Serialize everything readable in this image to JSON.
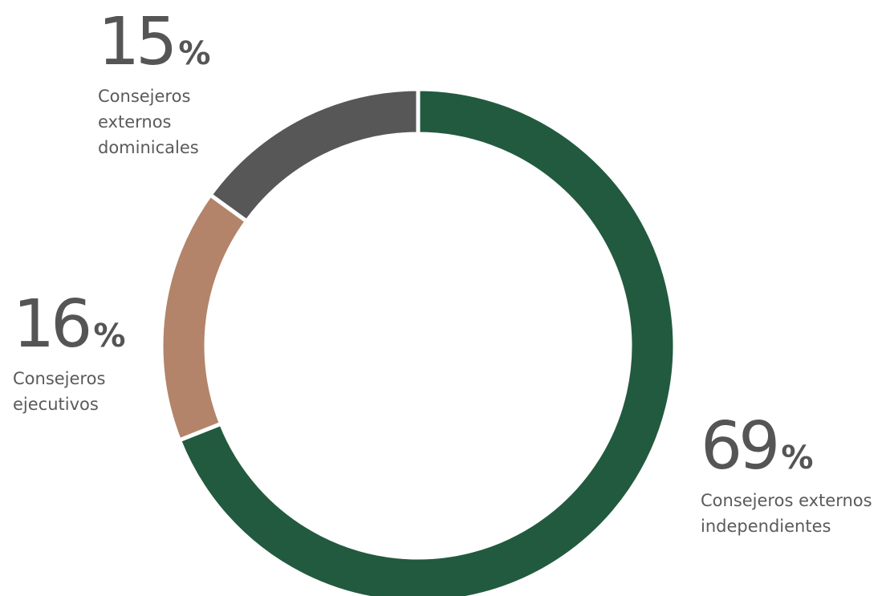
{
  "chart_data": {
    "type": "pie",
    "title": "",
    "categories": [
      "Consejeros externos independientes",
      "Consejeros ejecutivos",
      "Consejeros externos dominicales"
    ],
    "values": [
      69,
      16,
      15
    ],
    "unit": "%",
    "colors": [
      "#225a3f",
      "#b3846a",
      "#575757"
    ],
    "legend": "none",
    "labels": [
      {
        "value": "69",
        "sign": "%",
        "label": "Consejeros externos independientes"
      },
      {
        "value": "16",
        "sign": "%",
        "label": "Consejeros ejecutivos"
      },
      {
        "value": "15",
        "sign": "%",
        "label": "Consejeros externos dominicales"
      }
    ]
  }
}
